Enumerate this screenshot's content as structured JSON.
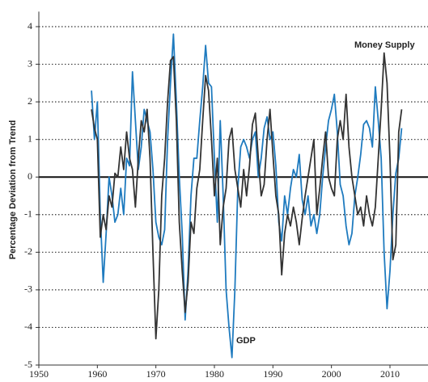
{
  "chart_data": {
    "type": "line",
    "y_label": "Percentage Deviation from Trend",
    "annotations": [
      "Money Supply",
      "GDP"
    ],
    "x": [
      1959,
      1959.5,
      1960,
      1960.5,
      1961,
      1961.5,
      1962,
      1962.5,
      1963,
      1963.5,
      1964,
      1964.5,
      1965,
      1965.5,
      1966,
      1966.5,
      1967,
      1967.5,
      1968,
      1968.5,
      1969,
      1969.5,
      1970,
      1970.5,
      1971,
      1971.5,
      1972,
      1972.5,
      1973,
      1973.5,
      1974,
      1974.5,
      1975,
      1975.5,
      1976,
      1976.5,
      1977,
      1977.5,
      1978,
      1978.5,
      1979,
      1979.5,
      1980,
      1980.5,
      1981,
      1981.5,
      1982,
      1982.5,
      1983,
      1983.5,
      1984,
      1984.5,
      1985,
      1985.5,
      1986,
      1986.5,
      1987,
      1987.5,
      1988,
      1988.5,
      1989,
      1989.5,
      1990,
      1990.5,
      1991,
      1991.5,
      1992,
      1992.5,
      1993,
      1993.5,
      1994,
      1994.5,
      1995,
      1995.5,
      1996,
      1996.5,
      1997,
      1997.5,
      1998,
      1998.5,
      1999,
      1999.5,
      2000,
      2000.5,
      2001,
      2001.5,
      2002,
      2002.5,
      2003,
      2003.5,
      2004,
      2004.5,
      2005,
      2005.5,
      2006,
      2006.5,
      2007,
      2007.5,
      2008,
      2008.5,
      2009,
      2009.5,
      2010,
      2010.5,
      2011,
      2011.5,
      2012
    ],
    "series": [
      {
        "name": "GDP",
        "color": "#1f7bbf",
        "values": [
          2.3,
          1.0,
          2.0,
          -1.0,
          -2.8,
          -1.5,
          0.0,
          -0.5,
          -1.2,
          -1.0,
          -0.3,
          -1.0,
          0.5,
          0.3,
          2.8,
          1.5,
          0.2,
          0.8,
          1.8,
          1.5,
          1.2,
          0.2,
          -1.2,
          -1.6,
          -1.8,
          -1.4,
          1.0,
          2.5,
          3.8,
          2.0,
          0.0,
          -1.5,
          -3.8,
          -2.5,
          -0.5,
          0.5,
          0.5,
          1.5,
          2.4,
          3.5,
          2.5,
          2.4,
          0.5,
          -1.2,
          1.5,
          -0.5,
          -3.0,
          -4.0,
          -4.8,
          -3.0,
          -0.3,
          0.8,
          1.0,
          0.8,
          0.5,
          1.0,
          1.2,
          0.0,
          0.5,
          1.3,
          1.6,
          1.0,
          1.2,
          0.3,
          -1.2,
          -1.7,
          -0.5,
          -1.0,
          -0.3,
          0.2,
          0.0,
          0.6,
          -0.6,
          -1.0,
          -0.5,
          -1.3,
          -1.0,
          -1.5,
          -1.0,
          0.0,
          0.8,
          1.5,
          1.8,
          2.2,
          1.2,
          -0.2,
          -0.5,
          -1.3,
          -1.8,
          -1.5,
          -0.5,
          0.0,
          0.6,
          1.4,
          1.5,
          1.3,
          0.8,
          2.4,
          1.5,
          0.5,
          -2.0,
          -3.5,
          -2.5,
          -1.0,
          0.1,
          0.5,
          1.3
        ]
      },
      {
        "name": "Money Supply",
        "color": "#333333",
        "values": [
          1.8,
          1.3,
          1.0,
          -1.6,
          -1.0,
          -1.4,
          -0.5,
          -0.8,
          0.1,
          0.0,
          0.8,
          0.2,
          1.2,
          0.5,
          0.2,
          -0.8,
          0.5,
          1.5,
          1.2,
          1.8,
          0.5,
          -2.0,
          -4.3,
          -3.0,
          -0.5,
          0.5,
          2.0,
          3.1,
          3.2,
          1.5,
          -1.2,
          -2.5,
          -3.6,
          -2.8,
          -1.2,
          -1.5,
          -0.3,
          0.2,
          1.5,
          2.7,
          2.3,
          1.0,
          -0.5,
          0.5,
          -1.8,
          -0.8,
          -0.3,
          1.0,
          1.3,
          0.2,
          -0.3,
          -0.8,
          0.2,
          -0.5,
          0.3,
          1.4,
          1.7,
          0.5,
          -0.5,
          -0.2,
          1.0,
          1.8,
          0.6,
          -0.5,
          -1.0,
          -2.6,
          -1.5,
          -1.0,
          -1.3,
          -0.8,
          -1.2,
          -1.8,
          -1.1,
          -0.5,
          0.0,
          0.5,
          1.0,
          -1.0,
          -0.3,
          0.5,
          1.2,
          0.0,
          -0.3,
          -0.5,
          1.0,
          1.5,
          1.0,
          2.2,
          0.8,
          0.0,
          -0.5,
          -1.0,
          -0.8,
          -1.3,
          -0.5,
          -1.0,
          -1.3,
          -0.8,
          0.5,
          1.8,
          3.3,
          2.5,
          0.5,
          -2.2,
          -1.8,
          1.2,
          1.8
        ]
      }
    ],
    "xlim": [
      1950,
      2016.5
    ],
    "xticks": [
      1950,
      1960,
      1970,
      1980,
      1990,
      2000,
      2010
    ],
    "ylim": [
      -5,
      4.4
    ],
    "yticks": [
      -5,
      -4,
      -3,
      -2,
      -1,
      0,
      1,
      2,
      3,
      4
    ],
    "grid": true
  }
}
